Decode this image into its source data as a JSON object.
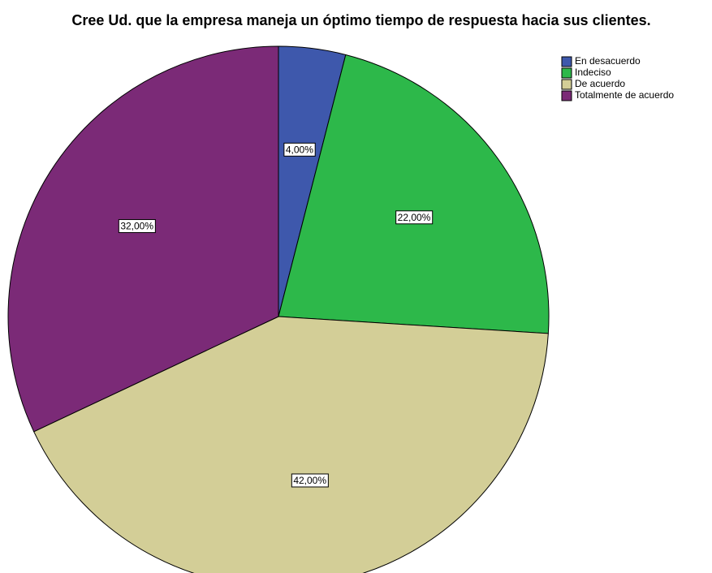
{
  "chart_data": {
    "type": "pie",
    "title": "Cree Ud. que la empresa maneja un óptimo tiempo de respuesta hacia sus clientes.",
    "categories": [
      "En desacuerdo",
      "Indeciso",
      "De acuerdo",
      "Totalmente de acuerdo"
    ],
    "values": [
      4,
      22,
      42,
      32
    ],
    "value_labels": [
      "4,00%",
      "22,00%",
      "42,00%",
      "32,00%"
    ],
    "colors": [
      "#3e58ac",
      "#2db84a",
      "#d3ce97",
      "#7b2a77"
    ]
  }
}
